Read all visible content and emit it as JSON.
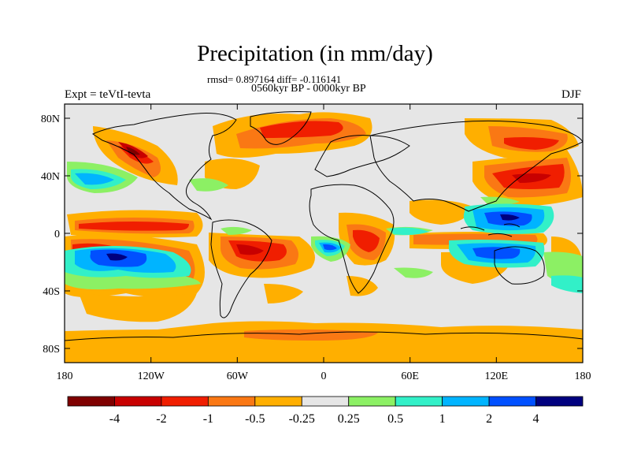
{
  "title": "Precipitation (in mm/day)",
  "stats_line": "rmsd= 0.897164 diff= -0.116141",
  "period": "0560kyr BP - 0000kyr BP",
  "experiment": "Expt = teVtI-tevta",
  "season": "DJF",
  "lon_ticks": [
    "180",
    "120W",
    "60W",
    "0",
    "60E",
    "120E",
    "180"
  ],
  "lat_ticks": [
    "80N",
    "40N",
    "0",
    "40S",
    "80S"
  ],
  "colorbar": {
    "colors": [
      "#7f0000",
      "#c80000",
      "#f01e00",
      "#fa7814",
      "#ffaf00",
      "#e6e6e6",
      "#8cf064",
      "#32f0c8",
      "#00b4ff",
      "#0050ff",
      "#00007f"
    ],
    "labels": [
      "-4",
      "-2",
      "-1",
      "-0.5",
      "-0.25",
      "0.25",
      "0.5",
      "1",
      "2",
      "4"
    ]
  },
  "colors": {
    "neutral": "#e6e6e6",
    "land_outline": "#000000"
  }
}
